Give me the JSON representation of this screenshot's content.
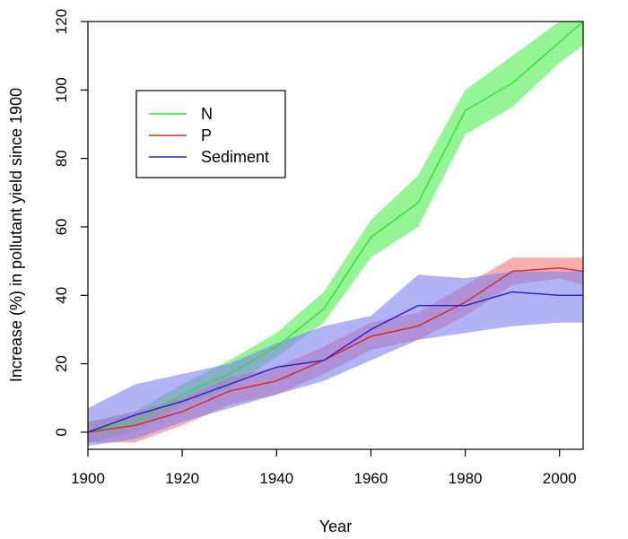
{
  "chart_data": {
    "type": "line",
    "title": "",
    "xlabel": "Year",
    "ylabel": "Increase (%) in pollutant yield since 1900",
    "xlim": [
      1900,
      2005
    ],
    "ylim": [
      -5,
      120
    ],
    "x_ticks": [
      1900,
      1920,
      1940,
      1960,
      1980,
      2000
    ],
    "y_ticks": [
      0,
      20,
      40,
      60,
      80,
      100,
      120
    ],
    "grid": false,
    "legend_position": "top-left",
    "x": [
      1900,
      1910,
      1920,
      1930,
      1940,
      1950,
      1960,
      1970,
      1980,
      1990,
      2000,
      2005
    ],
    "series": [
      {
        "name": "N",
        "line_color": "#33dd33",
        "band_color": "#4dee4d",
        "values": [
          0,
          3,
          11,
          17,
          25,
          36,
          57,
          67,
          94,
          102,
          114,
          120
        ],
        "lower": [
          -3,
          0,
          8,
          13,
          22,
          32,
          51,
          60,
          87,
          95,
          108,
          113
        ],
        "upper": [
          3,
          6,
          14,
          21,
          29,
          41,
          62,
          75,
          100,
          110,
          120,
          122
        ]
      },
      {
        "name": "P",
        "line_color": "#dd2222",
        "band_color": "#f47a7a",
        "values": [
          0,
          2,
          6,
          12,
          15,
          21,
          28,
          31,
          38,
          47,
          48,
          47
        ],
        "lower": [
          -3,
          -3,
          2,
          8,
          11,
          17,
          24,
          27,
          34,
          43,
          45,
          43
        ],
        "upper": [
          3,
          6,
          10,
          16,
          19,
          25,
          32,
          35,
          43,
          51,
          51,
          51
        ]
      },
      {
        "name": "Sediment",
        "line_color": "#2222cc",
        "band_color": "#7f7ff0",
        "values": [
          0,
          5,
          9,
          14,
          19,
          21,
          30,
          37,
          37,
          41,
          40,
          40
        ],
        "lower": [
          -4,
          -2,
          3,
          7,
          11,
          15,
          21,
          27,
          29,
          31,
          32,
          32
        ],
        "upper": [
          7,
          14,
          17,
          20,
          26,
          31,
          34,
          46,
          45,
          47,
          47,
          47
        ]
      }
    ]
  }
}
